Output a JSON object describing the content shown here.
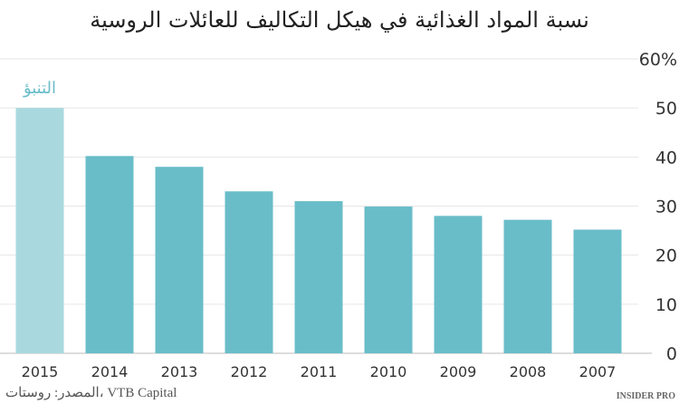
{
  "chart_data": {
    "type": "bar",
    "title": "نسبة المواد الغذائية في هيكل التكاليف للعائلات الروسية",
    "categories": [
      "2015",
      "2014",
      "2013",
      "2012",
      "2011",
      "2010",
      "2009",
      "2008",
      "2007"
    ],
    "values": [
      50,
      40.2,
      38,
      33,
      31,
      29.9,
      28,
      27.2,
      25.2
    ],
    "forecast_index": 0,
    "annotation": "التنبؤ",
    "ylim": [
      0,
      60
    ],
    "yticks": [
      "0",
      "10",
      "20",
      "30",
      "40",
      "50",
      "60%"
    ],
    "grid": true,
    "colors": {
      "bar": "#69bdc8",
      "forecast": "#a9d9de",
      "annotation": "#69bdc8"
    }
  },
  "source": "المصدر: روستات، VTB Capital",
  "brand": "INSIDER PRO"
}
